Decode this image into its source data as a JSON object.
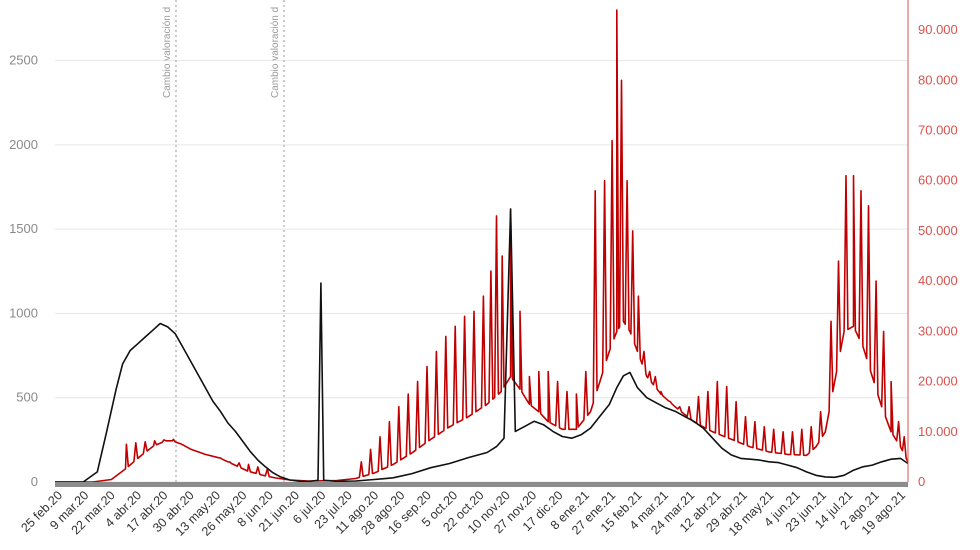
{
  "chart_data": {
    "type": "line",
    "x_labels": [
      "25 feb.20",
      "9 mar.20",
      "22 mar.20",
      "4 abr.20",
      "17 abr.20",
      "30 abr.20",
      "13 may.20",
      "26 may.20",
      "8 jun.20",
      "21 jun.20",
      "6 jul.20",
      "23 jul.20",
      "11 ago.20",
      "28 ago.20",
      "16 sep.20",
      "5 oct.20",
      "22 oct.20",
      "10 nov.20",
      "27 nov.20",
      "17 dic.20",
      "8 ene.21",
      "27 ene.21",
      "15 feb.21",
      "4 mar.21",
      "24 mar.21",
      "12 abr.21",
      "29 abr.21",
      "18 may.21",
      "4 jun.21",
      "23 jun.21",
      "14 jul.21",
      "2 ago.21",
      "19 ago.21"
    ],
    "y_left_ticks": [
      "0",
      "500",
      "1000",
      "1500",
      "2000",
      "2500"
    ],
    "y_left_range": [
      0,
      2800
    ],
    "y_right_ticks": [
      "0",
      "10.000",
      "20.000",
      "30.000",
      "40.000",
      "50.000",
      "60.000",
      "70.000",
      "80.000",
      "90.000"
    ],
    "y_right_range": [
      0,
      94000
    ],
    "annotations": [
      "Cambio valoración d",
      "Cambio valoración d"
    ],
    "series": [
      {
        "axis": "left",
        "color": "#111111",
        "points": [
          [
            0,
            0
          ],
          [
            30,
            0
          ],
          [
            45,
            60
          ],
          [
            55,
            300
          ],
          [
            65,
            550
          ],
          [
            72,
            700
          ],
          [
            80,
            780
          ],
          [
            88,
            820
          ],
          [
            96,
            860
          ],
          [
            104,
            900
          ],
          [
            112,
            940
          ],
          [
            120,
            920
          ],
          [
            128,
            880
          ],
          [
            136,
            800
          ],
          [
            144,
            720
          ],
          [
            152,
            640
          ],
          [
            160,
            560
          ],
          [
            168,
            480
          ],
          [
            176,
            420
          ],
          [
            184,
            350
          ],
          [
            192,
            300
          ],
          [
            200,
            240
          ],
          [
            208,
            180
          ],
          [
            216,
            130
          ],
          [
            224,
            90
          ],
          [
            232,
            55
          ],
          [
            240,
            30
          ],
          [
            250,
            12
          ],
          [
            260,
            5
          ],
          [
            270,
            3
          ],
          [
            280,
            10
          ],
          [
            283,
            1180
          ],
          [
            286,
            10
          ],
          [
            300,
            4
          ],
          [
            320,
            6
          ],
          [
            340,
            15
          ],
          [
            360,
            25
          ],
          [
            380,
            50
          ],
          [
            400,
            85
          ],
          [
            420,
            110
          ],
          [
            440,
            145
          ],
          [
            460,
            175
          ],
          [
            470,
            210
          ],
          [
            478,
            260
          ],
          [
            485,
            1620
          ],
          [
            490,
            300
          ],
          [
            500,
            330
          ],
          [
            510,
            360
          ],
          [
            520,
            340
          ],
          [
            530,
            300
          ],
          [
            540,
            270
          ],
          [
            550,
            260
          ],
          [
            560,
            280
          ],
          [
            570,
            320
          ],
          [
            580,
            390
          ],
          [
            590,
            460
          ],
          [
            598,
            560
          ],
          [
            605,
            630
          ],
          [
            612,
            650
          ],
          [
            620,
            560
          ],
          [
            630,
            500
          ],
          [
            640,
            470
          ],
          [
            650,
            440
          ],
          [
            660,
            420
          ],
          [
            670,
            390
          ],
          [
            680,
            360
          ],
          [
            690,
            320
          ],
          [
            700,
            260
          ],
          [
            710,
            200
          ],
          [
            720,
            160
          ],
          [
            730,
            140
          ],
          [
            740,
            135
          ],
          [
            750,
            130
          ],
          [
            760,
            120
          ],
          [
            770,
            115
          ],
          [
            780,
            100
          ],
          [
            790,
            85
          ],
          [
            800,
            60
          ],
          [
            810,
            40
          ],
          [
            820,
            30
          ],
          [
            830,
            28
          ],
          [
            840,
            40
          ],
          [
            850,
            70
          ],
          [
            860,
            90
          ],
          [
            870,
            100
          ],
          [
            880,
            120
          ],
          [
            890,
            135
          ],
          [
            900,
            140
          ],
          [
            908,
            110
          ]
        ]
      },
      {
        "axis": "right",
        "color": "#c00000",
        "points": [
          [
            0,
            0
          ],
          [
            40,
            0
          ],
          [
            60,
            500
          ],
          [
            75,
            2600
          ],
          [
            90,
            5000
          ],
          [
            105,
            7200
          ],
          [
            118,
            8200
          ],
          [
            125,
            8200
          ],
          [
            135,
            7500
          ],
          [
            145,
            6500
          ],
          [
            160,
            5500
          ],
          [
            175,
            4800
          ],
          [
            190,
            3500
          ],
          [
            205,
            2200
          ],
          [
            220,
            1400
          ],
          [
            235,
            800
          ],
          [
            250,
            400
          ],
          [
            270,
            200
          ],
          [
            300,
            300
          ],
          [
            320,
            700
          ],
          [
            340,
            1800
          ],
          [
            360,
            3500
          ],
          [
            380,
            5800
          ],
          [
            400,
            8500
          ],
          [
            420,
            11000
          ],
          [
            440,
            13000
          ],
          [
            460,
            15500
          ],
          [
            475,
            18000
          ],
          [
            485,
            21000
          ],
          [
            495,
            18500
          ],
          [
            505,
            15500
          ],
          [
            515,
            14000
          ],
          [
            525,
            12000
          ],
          [
            540,
            10500
          ],
          [
            555,
            10500
          ],
          [
            570,
            14000
          ],
          [
            580,
            20000
          ],
          [
            590,
            26000
          ],
          [
            598,
            30000
          ],
          [
            605,
            32000
          ],
          [
            612,
            30000
          ],
          [
            620,
            26000
          ],
          [
            630,
            21000
          ],
          [
            645,
            17500
          ],
          [
            660,
            15000
          ],
          [
            680,
            12000
          ],
          [
            700,
            10000
          ],
          [
            720,
            8500
          ],
          [
            740,
            7000
          ],
          [
            760,
            6000
          ],
          [
            780,
            5500
          ],
          [
            800,
            5300
          ],
          [
            810,
            7000
          ],
          [
            820,
            10000
          ],
          [
            830,
            20000
          ],
          [
            840,
            30000
          ],
          [
            850,
            31000
          ],
          [
            860,
            27000
          ],
          [
            870,
            21000
          ],
          [
            880,
            15000
          ],
          [
            890,
            10000
          ],
          [
            900,
            7000
          ],
          [
            908,
            4000
          ]
        ],
        "spikes": [
          [
            76,
            7500
          ],
          [
            86,
            7800
          ],
          [
            96,
            8000
          ],
          [
            106,
            8200
          ],
          [
            116,
            8400
          ],
          [
            126,
            8500
          ],
          [
            176,
            4800
          ],
          [
            186,
            4000
          ],
          [
            196,
            3800
          ],
          [
            206,
            3500
          ],
          [
            216,
            3000
          ],
          [
            226,
            2600
          ],
          [
            326,
            4000
          ],
          [
            336,
            6500
          ],
          [
            346,
            9000
          ],
          [
            356,
            12000
          ],
          [
            366,
            15000
          ],
          [
            376,
            17500
          ],
          [
            386,
            20000
          ],
          [
            396,
            23000
          ],
          [
            406,
            26000
          ],
          [
            416,
            29000
          ],
          [
            426,
            31000
          ],
          [
            436,
            33000
          ],
          [
            446,
            34000
          ],
          [
            456,
            37000
          ],
          [
            464,
            42000
          ],
          [
            470,
            53000
          ],
          [
            476,
            45000
          ],
          [
            485,
            54000
          ],
          [
            495,
            34000
          ],
          [
            505,
            21000
          ],
          [
            515,
            22000
          ],
          [
            525,
            22000
          ],
          [
            535,
            20000
          ],
          [
            545,
            18000
          ],
          [
            555,
            17500
          ],
          [
            565,
            22000
          ],
          [
            575,
            58000
          ],
          [
            585,
            60000
          ],
          [
            593,
            68000
          ],
          [
            598,
            94000
          ],
          [
            603,
            80000
          ],
          [
            609,
            60000
          ],
          [
            615,
            50000
          ],
          [
            621,
            37000
          ],
          [
            627,
            26000
          ],
          [
            633,
            22000
          ],
          [
            639,
            21000
          ],
          [
            645,
            18000
          ],
          [
            655,
            16000
          ],
          [
            665,
            15000
          ],
          [
            675,
            15000
          ],
          [
            685,
            17000
          ],
          [
            695,
            18000
          ],
          [
            705,
            20000
          ],
          [
            715,
            19000
          ],
          [
            725,
            16000
          ],
          [
            735,
            13000
          ],
          [
            745,
            12000
          ],
          [
            755,
            11000
          ],
          [
            765,
            10500
          ],
          [
            775,
            10000
          ],
          [
            785,
            10000
          ],
          [
            795,
            10500
          ],
          [
            805,
            11000
          ],
          [
            815,
            14000
          ],
          [
            826,
            32000
          ],
          [
            834,
            44000
          ],
          [
            842,
            61000
          ],
          [
            850,
            61000
          ],
          [
            858,
            58000
          ],
          [
            866,
            55000
          ],
          [
            874,
            40000
          ],
          [
            882,
            30000
          ],
          [
            890,
            20000
          ],
          [
            898,
            12000
          ],
          [
            904,
            9000
          ]
        ]
      }
    ],
    "grid": true
  }
}
